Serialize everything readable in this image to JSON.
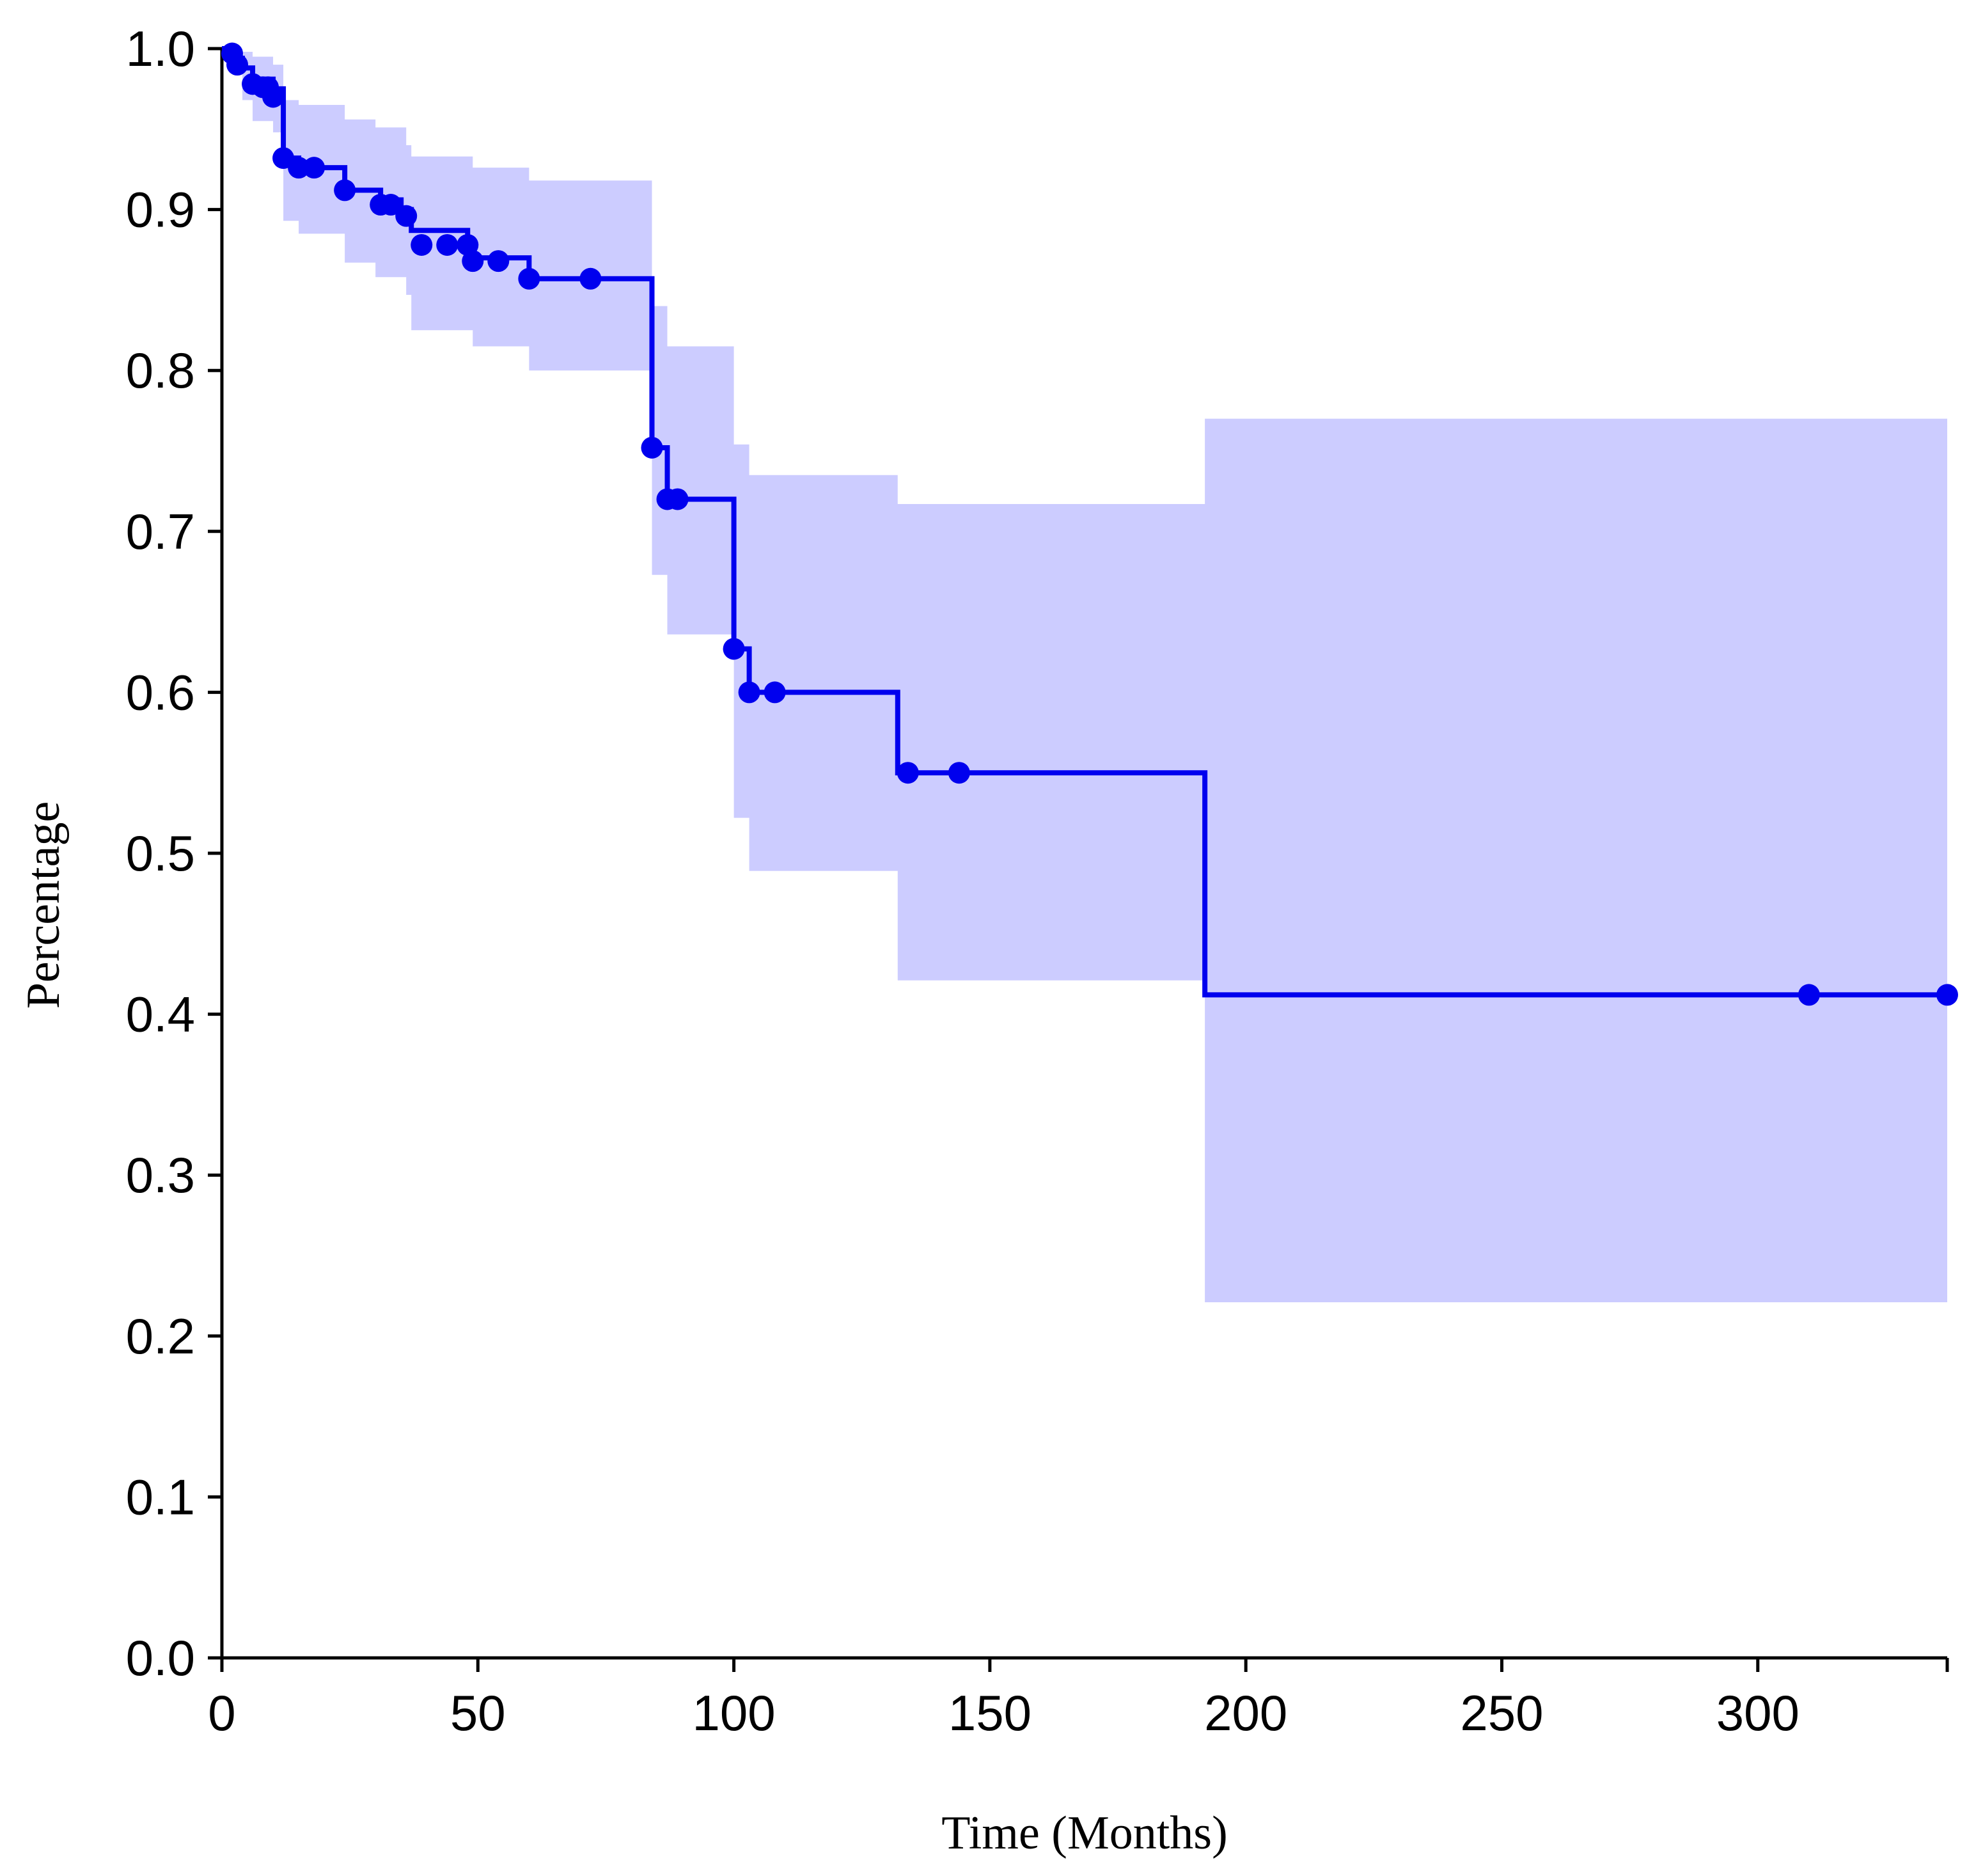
{
  "chart_data": {
    "type": "line",
    "subtype": "kaplan-meier step curve with confidence band",
    "title": "",
    "xlabel": "Time (Months)",
    "ylabel": "Percentage",
    "xlim": [
      0,
      337
    ],
    "ylim": [
      0,
      1
    ],
    "xticks": [
      0,
      50,
      100,
      150,
      200,
      250,
      300
    ],
    "xtick_labels": [
      "0",
      "50",
      "100",
      "150",
      "200",
      "250",
      "300"
    ],
    "yticks": [
      0,
      0.1,
      0.2,
      0.3,
      0.4,
      0.5,
      0.6,
      0.7,
      0.8,
      0.9,
      1.0
    ],
    "ytick_labels": [
      "0.0",
      "0.1",
      "0.2",
      "0.3",
      "0.4",
      "0.5",
      "0.6",
      "0.7",
      "0.8",
      "0.9",
      "1.0"
    ],
    "grid": false,
    "colors": {
      "line": "#0000ee",
      "band": "#ccccff",
      "axis": "#000000"
    },
    "series": [
      {
        "steps": [
          [
            0,
            1.0
          ],
          [
            2,
            0.994
          ],
          [
            4,
            0.988
          ],
          [
            6,
            0.981
          ],
          [
            10,
            0.975
          ],
          [
            12,
            0.932
          ],
          [
            15,
            0.926
          ],
          [
            24,
            0.912
          ],
          [
            31,
            0.906
          ],
          [
            35,
            0.9
          ],
          [
            37,
            0.887
          ],
          [
            48,
            0.87
          ],
          [
            60,
            0.857
          ],
          [
            84,
            0.752
          ],
          [
            87,
            0.72
          ],
          [
            100,
            0.627
          ],
          [
            103,
            0.6
          ],
          [
            132,
            0.55
          ],
          [
            192,
            0.412
          ],
          [
            337,
            0.412
          ]
        ],
        "band": [
          [
            0,
            1.0,
            1.0
          ],
          [
            2,
            1.0,
            0.985
          ],
          [
            4,
            0.998,
            0.968
          ],
          [
            6,
            0.995,
            0.955
          ],
          [
            10,
            0.99,
            0.948
          ],
          [
            12,
            0.968,
            0.893
          ],
          [
            15,
            0.965,
            0.885
          ],
          [
            24,
            0.956,
            0.867
          ],
          [
            30,
            0.951,
            0.858
          ],
          [
            36,
            0.94,
            0.847
          ],
          [
            37,
            0.933,
            0.825
          ],
          [
            49,
            0.926,
            0.815
          ],
          [
            60,
            0.918,
            0.8
          ],
          [
            84,
            0.84,
            0.673
          ],
          [
            87,
            0.815,
            0.636
          ],
          [
            100,
            0.754,
            0.522
          ],
          [
            103,
            0.735,
            0.489
          ],
          [
            132,
            0.717,
            0.421
          ],
          [
            192,
            0.77,
            0.221
          ],
          [
            337,
            0.77,
            0.221
          ]
        ],
        "censored": [
          [
            2,
            0.997
          ],
          [
            3,
            0.99
          ],
          [
            6,
            0.978
          ],
          [
            8,
            0.976
          ],
          [
            9,
            0.976
          ],
          [
            10,
            0.97
          ],
          [
            12,
            0.932
          ],
          [
            15,
            0.926
          ],
          [
            18,
            0.926
          ],
          [
            24,
            0.912
          ],
          [
            31,
            0.903
          ],
          [
            33,
            0.903
          ],
          [
            36,
            0.896
          ],
          [
            39,
            0.878
          ],
          [
            44,
            0.878
          ],
          [
            48,
            0.878
          ],
          [
            49,
            0.868
          ],
          [
            54,
            0.868
          ],
          [
            60,
            0.857
          ],
          [
            72,
            0.857
          ],
          [
            84,
            0.752
          ],
          [
            87,
            0.72
          ],
          [
            89,
            0.72
          ],
          [
            100,
            0.627
          ],
          [
            103,
            0.6
          ],
          [
            108,
            0.6
          ],
          [
            134,
            0.55
          ],
          [
            144,
            0.55
          ],
          [
            310,
            0.412
          ],
          [
            337,
            0.412
          ]
        ]
      }
    ]
  }
}
